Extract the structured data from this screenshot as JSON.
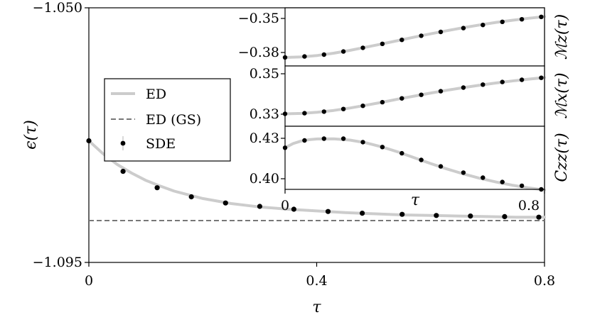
{
  "chart_data": [
    {
      "type": "line",
      "xlabel": "τ",
      "ylabel": "ϵ(τ)",
      "xlim": [
        0,
        0.8
      ],
      "ylim": [
        -1.095,
        -1.05
      ],
      "xticks": [
        "0",
        "0.4",
        "0.8"
      ],
      "yticks": [
        "−1.050",
        "−1.095"
      ],
      "legend": {
        "position": "center-left",
        "entries": [
          {
            "label": "ED",
            "style": "solid-line",
            "color": "#cccccc"
          },
          {
            "label": "ED (GS)",
            "style": "dashed-line",
            "color": "#777777"
          },
          {
            "label": "SDE",
            "style": "marker-with-errorbar",
            "color": "#000000"
          }
        ]
      },
      "series": [
        {
          "name": "ED",
          "style": "line",
          "color": "#cccccc",
          "x": [
            0,
            0.025,
            0.05,
            0.075,
            0.1,
            0.125,
            0.15,
            0.2,
            0.25,
            0.3,
            0.35,
            0.4,
            0.45,
            0.5,
            0.55,
            0.6,
            0.65,
            0.7,
            0.75,
            0.8
          ],
          "y": [
            -1.0735,
            -1.0758,
            -1.0777,
            -1.0792,
            -1.0805,
            -1.0815,
            -1.0824,
            -1.0837,
            -1.0846,
            -1.0852,
            -1.0856,
            -1.0859,
            -1.0862,
            -1.0864,
            -1.0866,
            -1.0867,
            -1.0868,
            -1.0869,
            -1.087,
            -1.087
          ]
        },
        {
          "name": "ED (GS)",
          "style": "dashed",
          "color": "#777777",
          "x": [
            0,
            0.8
          ],
          "y": [
            -1.0876,
            -1.0876
          ]
        },
        {
          "name": "SDE",
          "style": "markers",
          "color": "#000000",
          "x": [
            0,
            0.06,
            0.12,
            0.18,
            0.24,
            0.3,
            0.36,
            0.42,
            0.48,
            0.55,
            0.61,
            0.67,
            0.73,
            0.79
          ],
          "y": [
            -1.0735,
            -1.0789,
            -1.0818,
            -1.0834,
            -1.0845,
            -1.0851,
            -1.0856,
            -1.086,
            -1.0863,
            -1.0865,
            -1.0867,
            -1.0868,
            -1.0869,
            -1.087
          ]
        }
      ]
    },
    {
      "type": "line",
      "ylabel": "ℳz(τ)",
      "xlim": [
        0,
        0.8
      ],
      "ylim": [
        -0.3855,
        -0.3445
      ],
      "yticks": [
        "−0.35",
        "−0.38"
      ],
      "series": [
        {
          "name": "ED",
          "style": "line",
          "color": "#cccccc",
          "x": [
            0,
            0.05,
            0.1,
            0.15,
            0.2,
            0.25,
            0.3,
            0.35,
            0.4,
            0.45,
            0.5,
            0.55,
            0.6,
            0.65,
            0.7,
            0.75,
            0.8
          ],
          "y": [
            -0.3795,
            -0.3791,
            -0.3781,
            -0.3765,
            -0.3745,
            -0.3722,
            -0.3699,
            -0.3675,
            -0.3651,
            -0.3628,
            -0.3606,
            -0.3585,
            -0.3566,
            -0.3548,
            -0.3533,
            -0.3519,
            -0.3507
          ]
        },
        {
          "name": "SDE",
          "style": "markers",
          "color": "#000000",
          "x": [
            0,
            0.06,
            0.12,
            0.18,
            0.24,
            0.3,
            0.36,
            0.42,
            0.48,
            0.55,
            0.61,
            0.67,
            0.73,
            0.79
          ],
          "y": [
            -0.3795,
            -0.3788,
            -0.3775,
            -0.3753,
            -0.3727,
            -0.3699,
            -0.3671,
            -0.3642,
            -0.3615,
            -0.3588,
            -0.3566,
            -0.3544,
            -0.3526,
            -0.3509
          ]
        }
      ]
    },
    {
      "type": "line",
      "ylabel": "ℳx(τ)",
      "xlim": [
        0,
        0.8
      ],
      "ylim": [
        0.3234,
        0.3535
      ],
      "yticks": [
        "0.35",
        "0.33"
      ],
      "series": [
        {
          "name": "ED",
          "style": "line",
          "color": "#cccccc",
          "x": [
            0,
            0.05,
            0.1,
            0.15,
            0.2,
            0.25,
            0.3,
            0.35,
            0.4,
            0.45,
            0.5,
            0.55,
            0.6,
            0.65,
            0.7,
            0.75,
            0.8
          ],
          "y": [
            0.3296,
            0.3298,
            0.3304,
            0.3313,
            0.3325,
            0.3339,
            0.3354,
            0.337,
            0.3385,
            0.34,
            0.3414,
            0.3427,
            0.3439,
            0.345,
            0.346,
            0.3469,
            0.3477
          ]
        },
        {
          "name": "SDE",
          "style": "markers",
          "color": "#000000",
          "x": [
            0,
            0.06,
            0.12,
            0.18,
            0.24,
            0.3,
            0.36,
            0.42,
            0.48,
            0.55,
            0.61,
            0.67,
            0.73,
            0.79
          ],
          "y": [
            0.3296,
            0.3299,
            0.3307,
            0.332,
            0.3336,
            0.3354,
            0.3373,
            0.3391,
            0.3409,
            0.3427,
            0.3442,
            0.3455,
            0.3466,
            0.3476
          ]
        }
      ]
    },
    {
      "type": "line",
      "xlabel": "τ",
      "ylabel": "Czz(τ)",
      "xlim": [
        0,
        0.8
      ],
      "xticks": [
        "0",
        "0.8"
      ],
      "ylim": [
        0.3966,
        0.4419
      ],
      "yticks": [
        "0.43",
        "0.40"
      ],
      "series": [
        {
          "name": "ED",
          "style": "line",
          "color": "#cccccc",
          "x": [
            0,
            0.025,
            0.05,
            0.075,
            0.1,
            0.15,
            0.2,
            0.25,
            0.3,
            0.35,
            0.4,
            0.45,
            0.5,
            0.55,
            0.6,
            0.65,
            0.7,
            0.75,
            0.8
          ],
          "y": [
            0.4265,
            0.4295,
            0.4313,
            0.4323,
            0.4328,
            0.4329,
            0.432,
            0.43,
            0.427,
            0.4233,
            0.4192,
            0.4151,
            0.4112,
            0.4077,
            0.4046,
            0.4019,
            0.3996,
            0.3977,
            0.3962
          ]
        },
        {
          "name": "SDE",
          "style": "markers",
          "color": "#000000",
          "x": [
            0,
            0.06,
            0.12,
            0.18,
            0.24,
            0.3,
            0.36,
            0.42,
            0.48,
            0.55,
            0.61,
            0.67,
            0.73,
            0.79
          ],
          "y": [
            0.4265,
            0.4317,
            0.433,
            0.433,
            0.4305,
            0.427,
            0.4225,
            0.4177,
            0.4131,
            0.4086,
            0.405,
            0.4019,
            0.3992,
            0.3966
          ]
        }
      ]
    }
  ]
}
